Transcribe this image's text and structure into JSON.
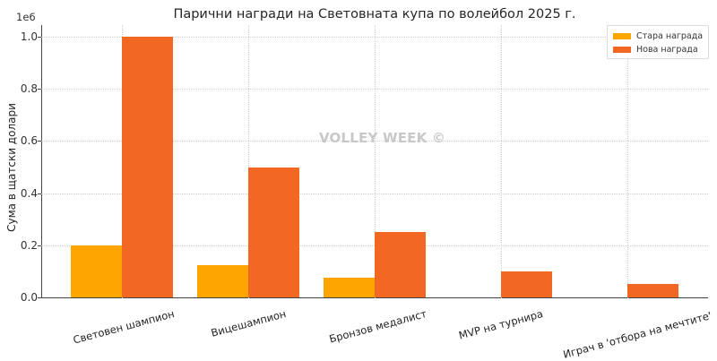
{
  "chart_data": {
    "type": "bar",
    "title": "Парични награди на Световната купа по волейбол 2025 г.",
    "xlabel": "",
    "ylabel": "Сума в щатски долари",
    "y_offset_label": "1e6",
    "ylim": [
      0,
      1050000
    ],
    "yticks": [
      "0.0",
      "0.2",
      "0.4",
      "0.6",
      "0.8",
      "1.0"
    ],
    "grid": true,
    "legend_position": "upper right",
    "categories": [
      "Световен шампион",
      "Вицешампион",
      "Бронзов медалист",
      "MVP на турнира",
      "Играч в 'отбора на мечтите'"
    ],
    "series": [
      {
        "name": "Стара награда",
        "color": "#FFA500",
        "values": [
          200000,
          125000,
          75000,
          0,
          0
        ]
      },
      {
        "name": "Нова награда",
        "color": "#F26722",
        "values": [
          1000000,
          500000,
          250000,
          100000,
          50000
        ]
      }
    ],
    "annotations": [
      "VOLLEY WEEK ©"
    ]
  },
  "watermark": "VOLLEY WEEK ©"
}
